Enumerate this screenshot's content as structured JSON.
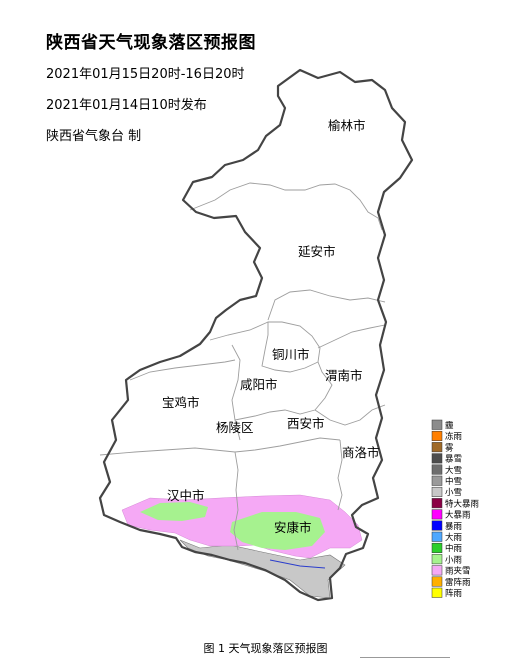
{
  "map_title": "陕西省天气现象落区预报图",
  "valid_period": "2021年01月15日20时-16日20时",
  "issue_time": "2021年01月14日10时发布",
  "issuer": "陕西省气象台 制",
  "caption": "图 1 天气现象落区预报图",
  "cities": {
    "yulin": "榆林市",
    "yanan": "延安市",
    "tongchuan": "铜川市",
    "weinan": "渭南市",
    "xianyang": "咸阳市",
    "baoji": "宝鸡市",
    "yangling": "杨陵区",
    "xian": "西安市",
    "shangluo": "商洛市",
    "hanzhong": "汉中市",
    "ankang": "安康市"
  },
  "legend": [
    {
      "label": "霾",
      "color": "#8c8c8c"
    },
    {
      "label": "冻雨",
      "color": "#ff7f00"
    },
    {
      "label": "雾",
      "color": "#a06a28"
    },
    {
      "label": "暴雪",
      "color": "#4d4d4d"
    },
    {
      "label": "大雪",
      "color": "#6e6e6e"
    },
    {
      "label": "中雪",
      "color": "#9a9a9a"
    },
    {
      "label": "小雪",
      "color": "#c8c8c8"
    },
    {
      "label": "特大暴雨",
      "color": "#8b0045"
    },
    {
      "label": "大暴雨",
      "color": "#ff00ff"
    },
    {
      "label": "暴雨",
      "color": "#0000ff"
    },
    {
      "label": "大雨",
      "color": "#4fa8ff"
    },
    {
      "label": "中雨",
      "color": "#2ccf2c"
    },
    {
      "label": "小雨",
      "color": "#a6f28f"
    },
    {
      "label": "雨夹雪",
      "color": "#f5a9f5"
    },
    {
      "label": "雷阵雨",
      "color": "#ffb000"
    },
    {
      "label": "阵雨",
      "color": "#ffff00"
    }
  ],
  "colors": {
    "province_border": "#444444",
    "city_border": "#9e9e9e",
    "light_rain": "#a6f28f",
    "sleet": "#f5a9f5",
    "light_snow": "#c8c8c8",
    "light_snow_dark": "#b4b4b4"
  }
}
